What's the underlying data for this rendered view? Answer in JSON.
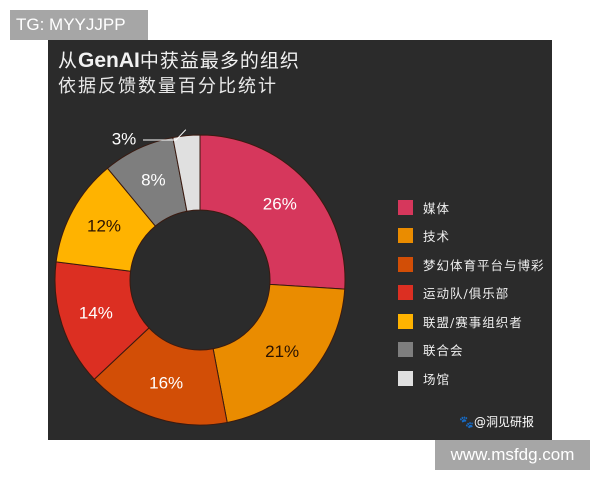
{
  "badges": {
    "top_left": "TG: MYYJJPP",
    "bottom_right": "www.msfdg.com"
  },
  "header": {
    "title_prefix": "从",
    "title_brand": "GenAI",
    "title_suffix": "中获益最多的组织",
    "subtitle": "依据反馈数量百分比统计"
  },
  "watermark": {
    "icon": "paw-icon",
    "text": "@洞见研报"
  },
  "legend": [
    {
      "label": "媒体",
      "color": "#d6375c"
    },
    {
      "label": "技术",
      "color": "#ea8c00"
    },
    {
      "label": "梦幻体育平台与博彩",
      "color": "#d24e06"
    },
    {
      "label": "运动队/俱乐部",
      "color": "#dc2f22"
    },
    {
      "label": "联盟/赛事组织者",
      "color": "#ffb300"
    },
    {
      "label": "联合会",
      "color": "#7e7e7e"
    },
    {
      "label": "场馆",
      "color": "#e0e0e0"
    }
  ],
  "chart_data": {
    "type": "pie",
    "variant": "donut",
    "title": "从GenAI中获益最多的组织",
    "subtitle": "依据反馈数量百分比统计",
    "categories": [
      "媒体",
      "技术",
      "梦幻体育平台与博彩",
      "运动队/俱乐部",
      "联盟/赛事组织者",
      "联合会",
      "场馆"
    ],
    "values": [
      26,
      21,
      16,
      14,
      12,
      8,
      3
    ],
    "unit": "%",
    "labels": [
      "26%",
      "21%",
      "16%",
      "14%",
      "12%",
      "8%",
      "3%"
    ],
    "colors": [
      "#d6375c",
      "#ea8c00",
      "#d24e06",
      "#dc2f22",
      "#ffb300",
      "#7e7e7e",
      "#e0e0e0"
    ],
    "label_colors": [
      "#ffffff",
      "#2a1200",
      "#ffffff",
      "#ffffff",
      "#2a1200",
      "#ffffff",
      "#ffffff"
    ],
    "legend_position": "right",
    "start_angle_deg": 0,
    "direction": "clockwise"
  }
}
